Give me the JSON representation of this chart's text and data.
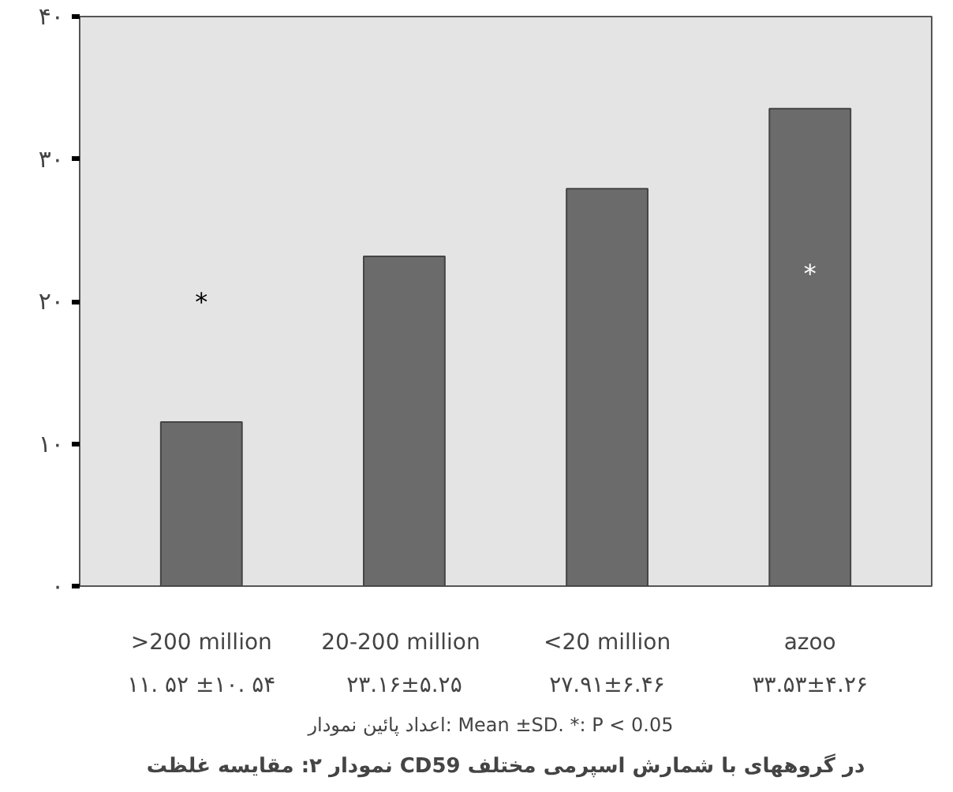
{
  "chart_data": {
    "type": "bar",
    "title": "نمودار ۲: مقایسه غلظت CD59 در گروههای با شمارش اسپرمی مختلف",
    "categories": [
      ">200 million",
      "20-200  million",
      "<20 million",
      "azoo"
    ],
    "values": [
      11.52,
      23.16,
      27.91,
      33.53
    ],
    "color": "#6b6b6b",
    "ylim": [
      0,
      40
    ],
    "yticks": [
      {
        "value": 0,
        "label": "۰"
      },
      {
        "value": 10,
        "label": "۱۰"
      },
      {
        "value": 20,
        "label": "۲۰"
      },
      {
        "value": 30,
        "label": "۳۰"
      },
      {
        "value": 40,
        "label": "۴۰"
      }
    ],
    "grid": false,
    "annotations": [
      "۱۱. ۵۲ ±۱۰. ۵۴",
      "۲۳.۱۶±۵.۲۵",
      "۲۷.۹۱±۶.۴۶",
      "۳۳.۵۳±۴.۲۶",
      "*",
      "*",
      "اعداد پائین نمودار: Mean ±SD.      *: P < 0.05"
    ]
  }
}
